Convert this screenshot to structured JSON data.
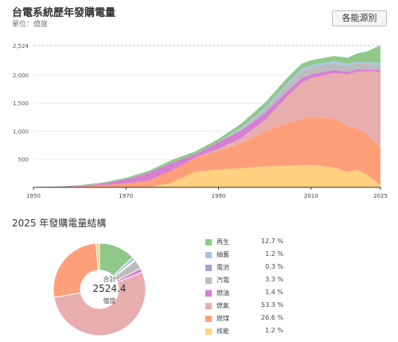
{
  "header": {
    "title": "台電系統歷年發購電量",
    "unit": "單位：億度",
    "sources_button": "各能源別"
  },
  "donut": {
    "section_title": "2025 年發購電量結構",
    "center_caption": "合計",
    "center_value": "2524.4",
    "center_unit": "億度"
  },
  "chart_data": [
    {
      "type": "area",
      "stacked": true,
      "x": [
        1950,
        1955,
        1960,
        1965,
        1970,
        1975,
        1980,
        1985,
        1990,
        1995,
        2000,
        2005,
        2008,
        2010,
        2015,
        2018,
        2020,
        2022,
        2024,
        2025
      ],
      "xticks": [
        "1950",
        "1970",
        "1990",
        "2010",
        "2025"
      ],
      "yticks": [
        "500",
        "1,000",
        "1,500",
        "2,000",
        "2,524"
      ],
      "ylim": [
        0,
        2524
      ],
      "grid": true,
      "series": [
        {
          "name": "核能",
          "color": "#ffd180",
          "values": [
            0,
            0,
            0,
            0,
            0,
            0,
            85,
            280,
            315,
            340,
            370,
            385,
            395,
            400,
            350,
            270,
            310,
            230,
            100,
            30
          ]
        },
        {
          "name": "燃煤",
          "color": "#ff9f7a",
          "values": [
            3,
            8,
            18,
            40,
            70,
            120,
            220,
            250,
            330,
            450,
            620,
            760,
            830,
            850,
            870,
            820,
            740,
            720,
            700,
            672
          ]
        },
        {
          "name": "燃氣",
          "color": "#e8adad",
          "values": [
            0,
            0,
            0,
            0,
            0,
            0,
            0,
            0,
            40,
            90,
            210,
            480,
            640,
            690,
            810,
            920,
            1010,
            1110,
            1260,
            1345
          ]
        },
        {
          "name": "燃油",
          "color": "#d67fd3",
          "values": [
            1,
            3,
            10,
            30,
            75,
            140,
            140,
            60,
            120,
            140,
            120,
            95,
            80,
            70,
            60,
            45,
            40,
            35,
            35,
            35
          ]
        },
        {
          "name": "汽電",
          "color": "#bcbcbc",
          "values": [
            0,
            0,
            0,
            0,
            0,
            0,
            0,
            0,
            0,
            20,
            60,
            110,
            130,
            130,
            120,
            110,
            100,
            95,
            90,
            84
          ]
        },
        {
          "name": "電池",
          "color": "#a2a3cf",
          "values": [
            0,
            0,
            0,
            0,
            0,
            0,
            0,
            0,
            0,
            0,
            0,
            0,
            0,
            0,
            0,
            0,
            0,
            2,
            5,
            8
          ]
        },
        {
          "name": "抽蓄",
          "color": "#a9c5e8",
          "values": [
            0,
            0,
            0,
            0,
            0,
            0,
            0,
            0,
            0,
            25,
            35,
            35,
            35,
            35,
            35,
            35,
            34,
            32,
            31,
            30
          ]
        },
        {
          "name": "再生",
          "color": "#8fc98a",
          "values": [
            2,
            5,
            10,
            15,
            25,
            35,
            45,
            50,
            55,
            75,
            90,
            95,
            90,
            85,
            90,
            105,
            150,
            190,
            270,
            320
          ]
        }
      ]
    },
    {
      "type": "pie",
      "categories": [
        "再生",
        "抽蓄",
        "電池",
        "汽電",
        "燃油",
        "燃氣",
        "燃煤",
        "核能"
      ],
      "values": [
        12.7,
        1.2,
        0.3,
        3.3,
        1.4,
        53.3,
        26.6,
        1.2
      ],
      "labels": [
        "12.7 %",
        "1.2 %",
        "0.3 %",
        "3.3 %",
        "1.4 %",
        "53.3 %",
        "26.6 %",
        "1.2 %"
      ],
      "colors": [
        "#8fc98a",
        "#a9c5e8",
        "#a2a3cf",
        "#bcbcbc",
        "#d67fd3",
        "#e8adad",
        "#ff9f7a",
        "#ffd180"
      ],
      "legend": "right"
    }
  ]
}
